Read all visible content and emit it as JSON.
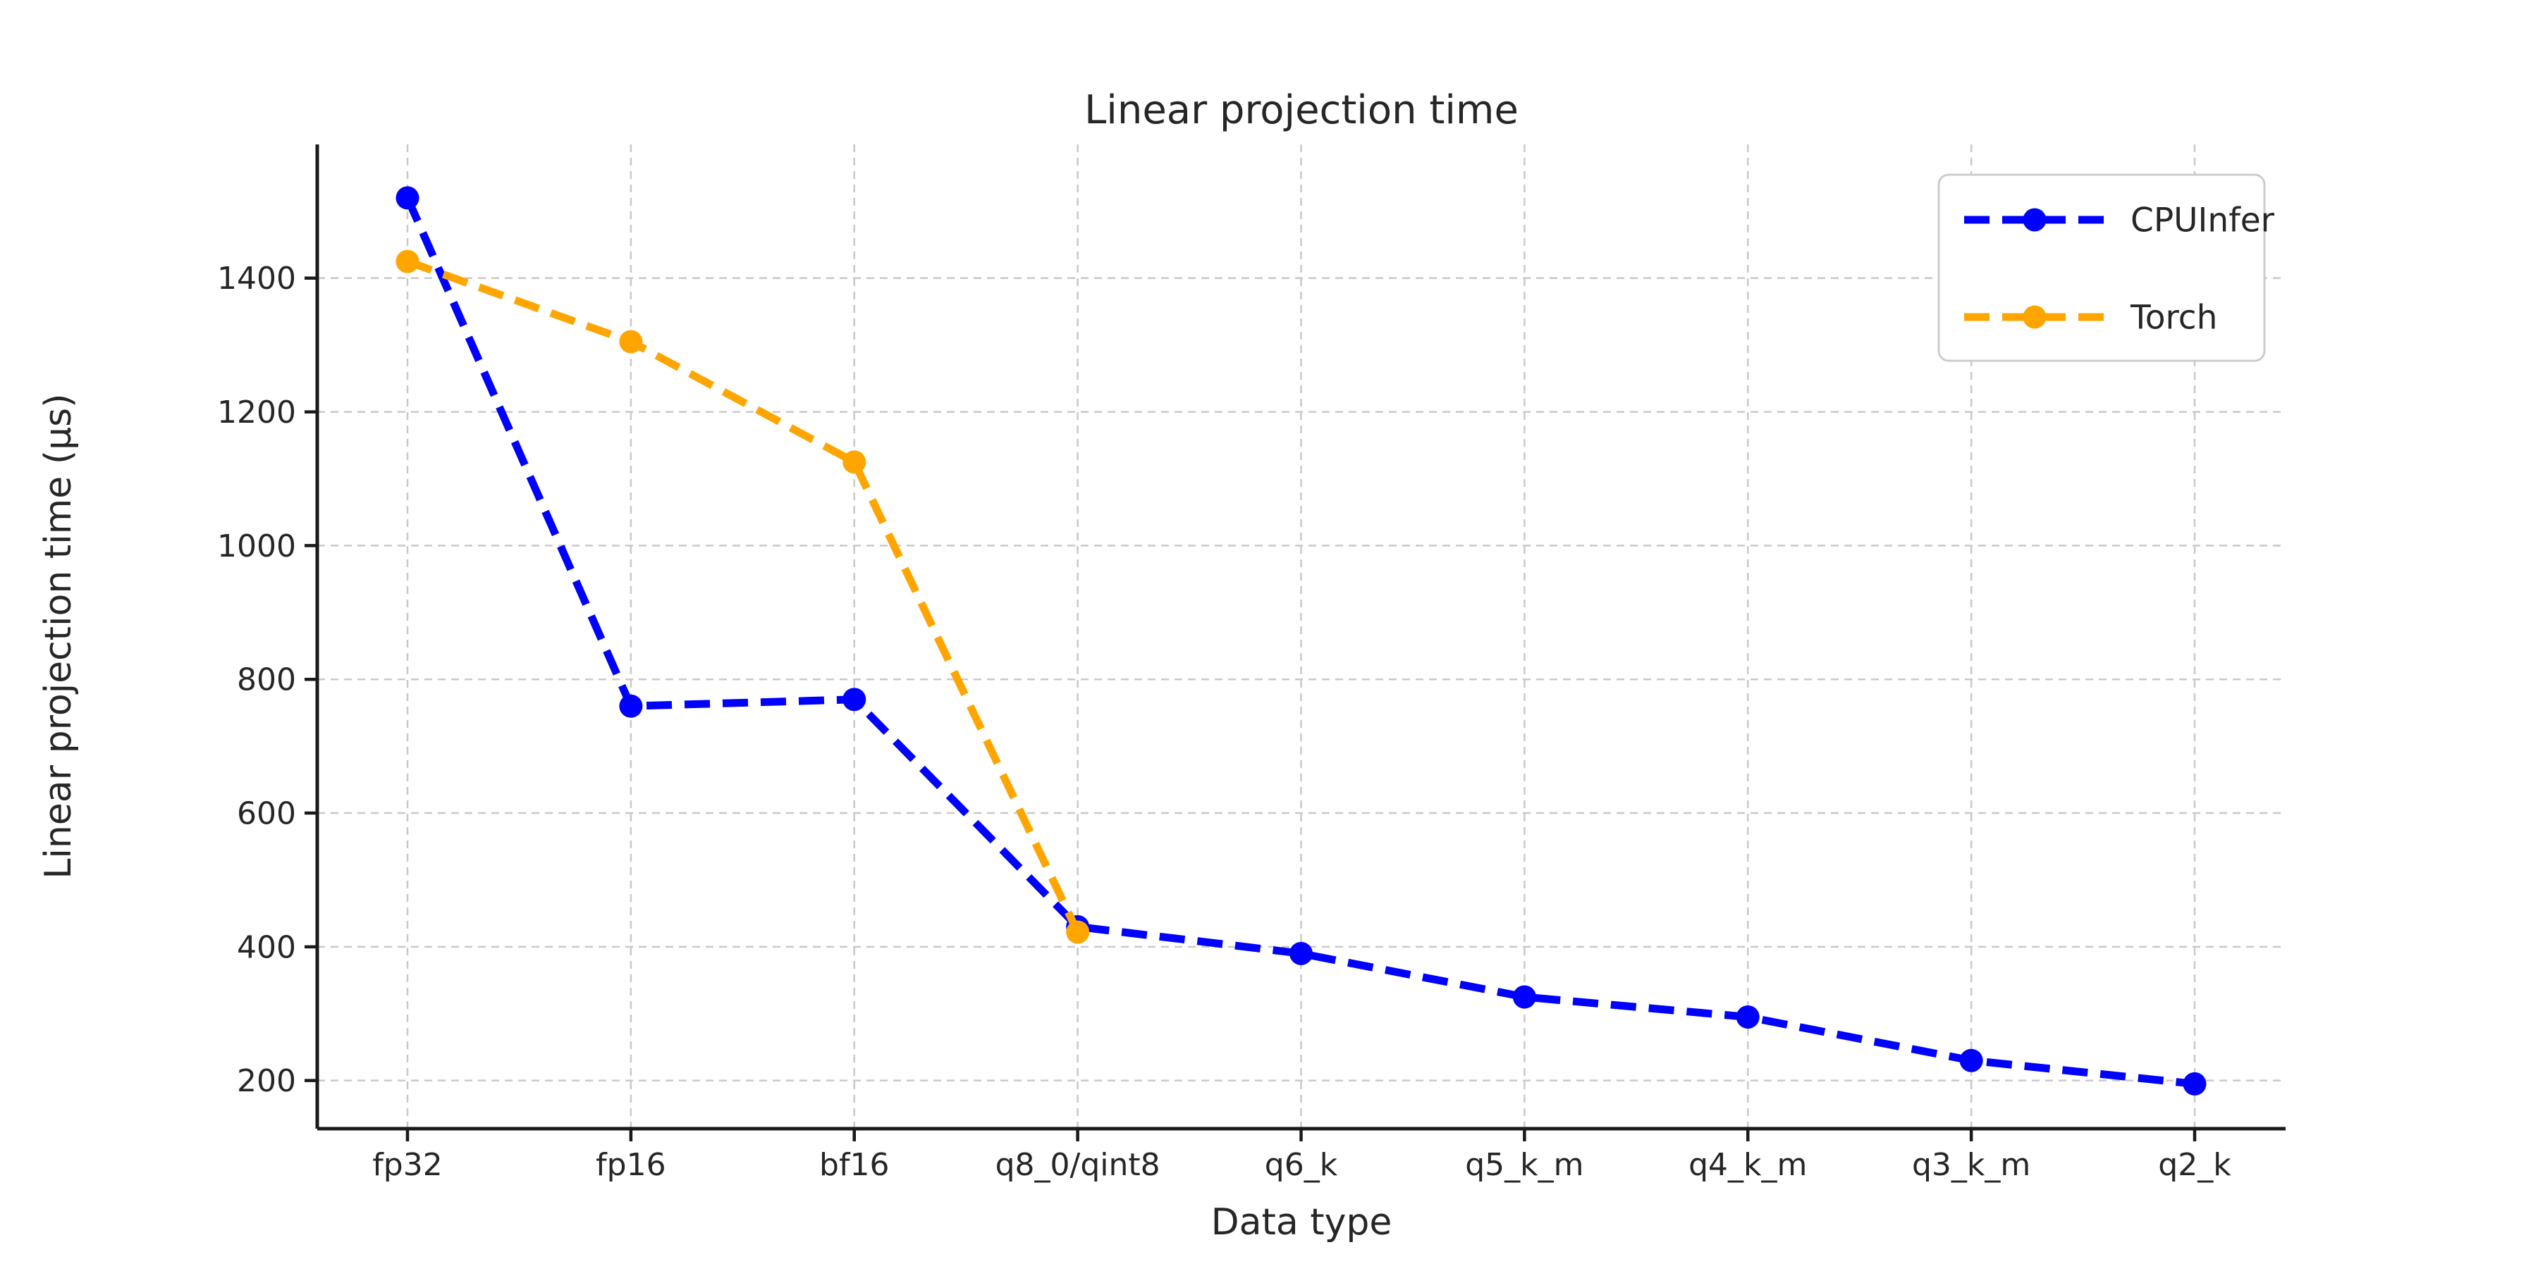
{
  "figure": {
    "background_color": "#ffffff",
    "text_color": "#262626",
    "grid_color": "#c9c9c9",
    "spine_color": "#1a1a1a"
  },
  "chart_data": {
    "type": "line",
    "title": "Linear projection time",
    "xlabel": "Data type",
    "ylabel": "Linear projection time (μs)",
    "categories": [
      "fp32",
      "fp16",
      "bf16",
      "q8_0/qint8",
      "q6_k",
      "q5_k_m",
      "q4_k_m",
      "q3_k_m",
      "q2_k"
    ],
    "series": [
      {
        "name": "CPUInfer",
        "color": "#0000ff",
        "line_style": "dashed",
        "marker": "circle",
        "values": [
          1520,
          760,
          770,
          430,
          390,
          325,
          295,
          230,
          195
        ]
      },
      {
        "name": "Torch",
        "color": "#ffa500",
        "line_style": "dashed",
        "marker": "circle",
        "values": [
          1425,
          1305,
          1125,
          422,
          null,
          null,
          null,
          null,
          null
        ]
      }
    ],
    "yticks": [
      200,
      400,
      600,
      800,
      1000,
      1200,
      1400
    ],
    "ylim": [
      128,
      1600
    ],
    "grid": true,
    "grid_style": "dashed",
    "legend_position": "upper right",
    "spines": [
      "left",
      "bottom"
    ]
  }
}
